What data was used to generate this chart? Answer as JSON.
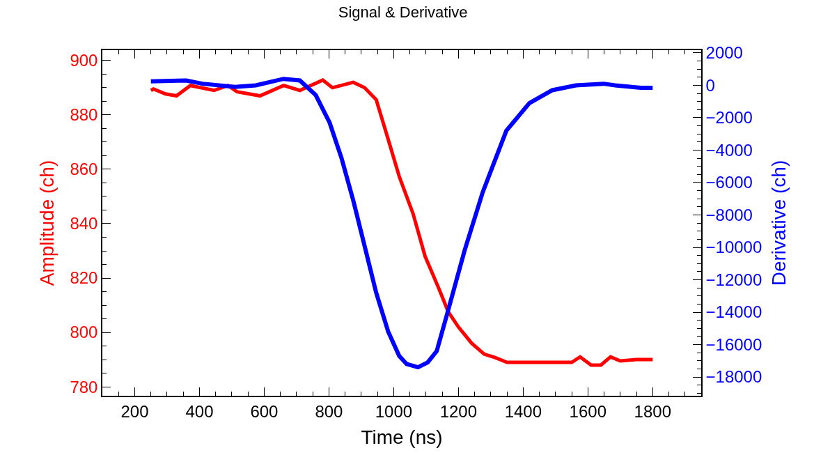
{
  "chart_data": {
    "type": "line",
    "title": "Signal & Derivative",
    "xlabel": "Time (ns)",
    "ylabel": "Amplitude (ch)",
    "y2label": "Derivative (ch)",
    "xlim": [
      100,
      1950
    ],
    "xticks": [
      200,
      400,
      600,
      800,
      1000,
      1200,
      1400,
      1600,
      1800
    ],
    "ylim": [
      776.7,
      903.8
    ],
    "yticks": [
      780,
      800,
      820,
      840,
      860,
      880,
      900
    ],
    "y2lim": [
      -19160,
      2170
    ],
    "y2ticks": [
      2000,
      0,
      -2000,
      -4000,
      -6000,
      -8000,
      -10000,
      -12000,
      -14000,
      -16000,
      -18000
    ],
    "line_style": "solid",
    "series": [
      {
        "color": "#ff0000",
        "x": [
          250,
          258,
          295,
          329,
          372,
          445,
          488,
          516,
          587,
          660,
          710,
          781,
          811,
          875,
          910,
          946,
          983,
          1017,
          1060,
          1097,
          1140,
          1168,
          1200,
          1241,
          1280,
          1312,
          1350,
          1400,
          1450,
          1500,
          1550,
          1576,
          1610,
          1640,
          1670,
          1700,
          1750,
          1800
        ],
        "values": [
          889,
          889.5,
          887.7,
          887,
          890.8,
          889,
          890.8,
          888.5,
          887,
          890.8,
          889,
          892.8,
          890,
          892,
          890,
          885.6,
          871,
          857.4,
          843.6,
          828,
          816,
          807.7,
          802,
          796,
          792,
          790.8,
          789,
          789,
          789,
          789,
          789,
          791,
          788,
          788,
          791,
          789.5,
          790,
          790
        ]
      },
      {
        "color": "#0000ff",
        "axis": "y2",
        "x": [
          250,
          359,
          409,
          510,
          574,
          660,
          710,
          759,
          802,
          839,
          875,
          910,
          946,
          983,
          1017,
          1040,
          1075,
          1105,
          1133,
          1168,
          1219,
          1275,
          1348,
          1419,
          1490,
          1563,
          1649,
          1684,
          1763,
          1800
        ],
        "values": [
          250,
          300,
          100,
          -100,
          0,
          400,
          300,
          -600,
          -2300,
          -4500,
          -7100,
          -9900,
          -12800,
          -15200,
          -16700,
          -17200,
          -17400,
          -17100,
          -16400,
          -13900,
          -10200,
          -6600,
          -2800,
          -1100,
          -300,
          0,
          100,
          0,
          -150,
          -150
        ]
      }
    ]
  }
}
